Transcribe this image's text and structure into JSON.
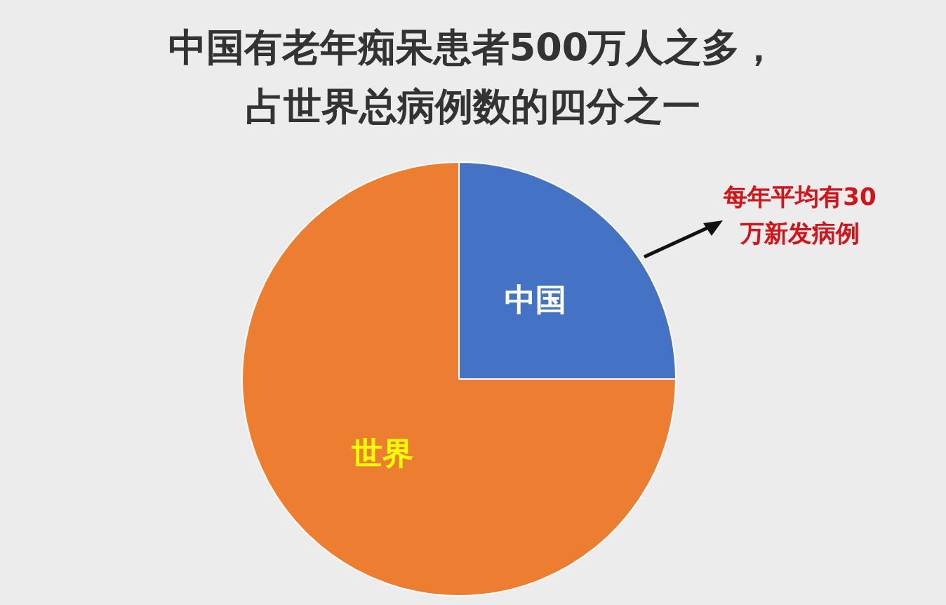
{
  "chart_data": {
    "type": "pie",
    "title": "中国有老年痴呆患者500万人之多，",
    "subtitle": "占世界总病例数的四分之一",
    "categories": [
      "中国",
      "世界"
    ],
    "values": [
      25,
      75
    ],
    "colors": [
      "#4472c4",
      "#ed7d31"
    ],
    "annotations": [
      "每年平均有30万新发病例"
    ],
    "legend": false
  }
}
